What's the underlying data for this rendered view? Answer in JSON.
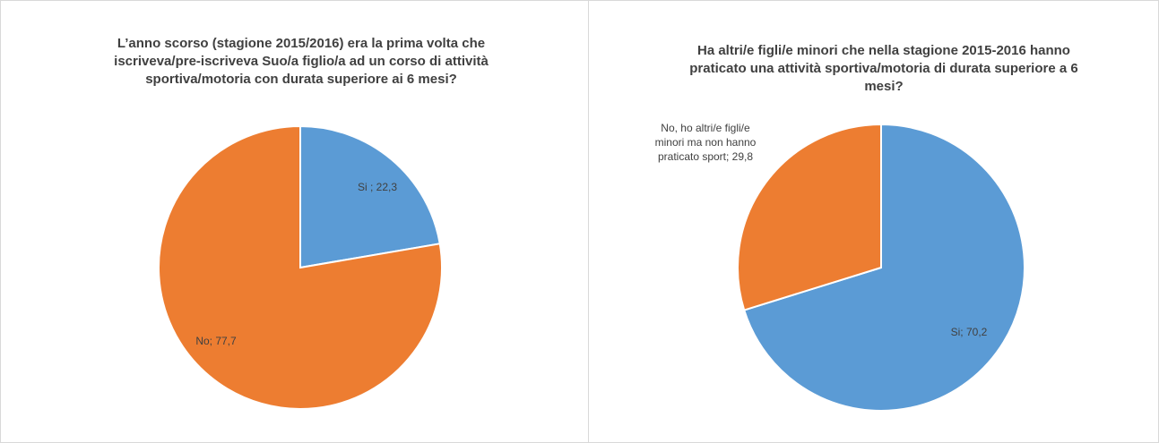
{
  "chart_data": [
    {
      "type": "pie",
      "title": "L’anno scorso (stagione 2015/2016) era la prima volta che iscriveva/pre-iscriveva Suo/a figlio/a ad un corso di attività sportiva/motoria con durata superiore ai 6 mesi?",
      "categories": [
        "Si",
        "No"
      ],
      "values": [
        22.3,
        77.7
      ],
      "value_labels": [
        "Si ; 22,3",
        "No; 77,7"
      ],
      "colors": [
        "#5b9bd5",
        "#ed7d31"
      ]
    },
    {
      "type": "pie",
      "title": "Ha altri/e figli/e minori che nella stagione 2015-2016 hanno praticato una attività sportiva/motoria di durata superiore a 6 mesi?",
      "categories": [
        "Si",
        "No, ho altri/e figli/e minori ma non hanno praticato sport"
      ],
      "values": [
        70.2,
        29.8
      ],
      "value_labels": [
        "Si; 70,2",
        "No, ho altri/e figli/e minori ma non hanno praticato sport; 29,8"
      ],
      "colors": [
        "#5b9bd5",
        "#ed7d31"
      ]
    }
  ]
}
